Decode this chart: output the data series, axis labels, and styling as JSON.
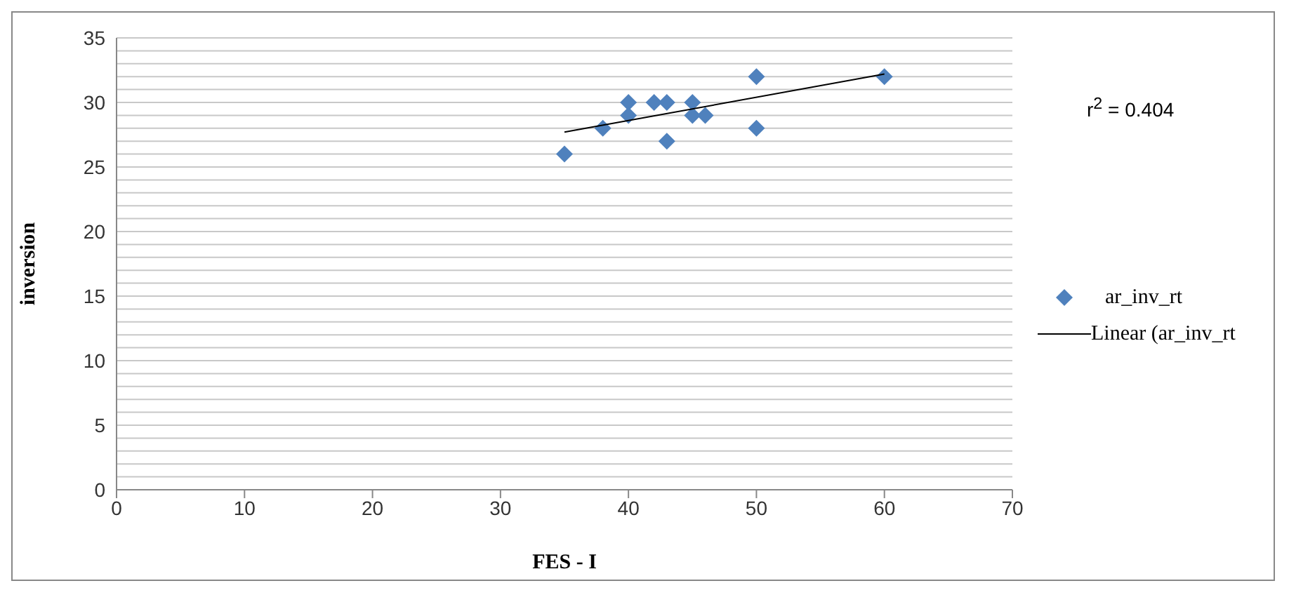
{
  "chart_data": {
    "type": "scatter",
    "xlabel": "FES - I",
    "ylabel": "inversion",
    "annotations": [
      "r$^{2}$ = 0.404"
    ],
    "xlim": [
      0,
      70
    ],
    "xticks": [
      0,
      10,
      20,
      30,
      40,
      50,
      60,
      70
    ],
    "ylim": [
      0,
      35
    ],
    "yticks": [
      0,
      {
        "value": 1,
        "label": null
      },
      {
        "value": 2,
        "label": null
      },
      {
        "value": 3,
        "label": null
      },
      {
        "value": 4,
        "label": null
      },
      5,
      {
        "value": 6,
        "label": null
      },
      {
        "value": 7,
        "label": null
      },
      {
        "value": 8,
        "label": null
      },
      {
        "value": 9,
        "label": null
      },
      10,
      {
        "value": 11,
        "label": null
      },
      {
        "value": 12,
        "label": null
      },
      {
        "value": 13,
        "label": null
      },
      {
        "value": 14,
        "label": null
      },
      15,
      {
        "value": 16,
        "label": null
      },
      {
        "value": 17,
        "label": null
      },
      {
        "value": 18,
        "label": null
      },
      {
        "value": 19,
        "label": null
      },
      20,
      {
        "value": 21,
        "label": null
      },
      {
        "value": 22,
        "label": null
      },
      {
        "value": 23,
        "label": null
      },
      {
        "value": 24,
        "label": null
      },
      25,
      {
        "value": 26,
        "label": null
      },
      {
        "value": 27,
        "label": null
      },
      {
        "value": 28,
        "label": null
      },
      {
        "value": 29,
        "label": null
      },
      30,
      {
        "value": 31,
        "label": null
      },
      {
        "value": 32,
        "label": null
      },
      {
        "value": 33,
        "label": null
      },
      {
        "value": 34,
        "label": null
      },
      35
    ],
    "grid": "y",
    "legend": "right",
    "marker": "diamond",
    "series": [
      {
        "name": "ar_inv_rt",
        "color": "#4f81bd",
        "x": [
          35,
          38,
          40,
          40,
          42,
          43,
          43,
          45,
          45,
          46,
          50,
          50,
          60
        ],
        "values": [
          26,
          28,
          30,
          29,
          30,
          30,
          27,
          30,
          29,
          29,
          32,
          28,
          32
        ]
      },
      {
        "name": "Linear (ar_inv_rt",
        "type": "line",
        "color": "#000000",
        "x": [
          35,
          60
        ],
        "values": [
          27.7,
          32.2
        ],
        "marker": "none",
        "line_style": "solid"
      }
    ]
  }
}
